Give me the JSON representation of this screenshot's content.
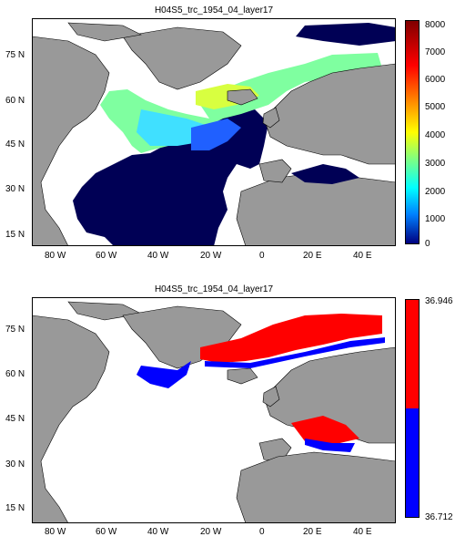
{
  "maps": [
    {
      "title": "H04S5_trc_1954_04_layer17",
      "lat_ticks": [
        "75 N",
        "60 N",
        "45 N",
        "30 N",
        "15 N"
      ],
      "lon_ticks": [
        "80 W",
        "60 W",
        "40 W",
        "20 W",
        "0",
        "20 E",
        "40 E"
      ],
      "colorbar": {
        "ticks": [
          "8000",
          "7000",
          "6000",
          "5000",
          "4000",
          "3000",
          "2000",
          "1000",
          "0"
        ],
        "range": [
          0,
          8000
        ],
        "colormap": "jet"
      }
    },
    {
      "title": "H04S5_trc_1954_04_layer17",
      "lat_ticks": [
        "75 N",
        "60 N",
        "45 N",
        "30 N",
        "15 N"
      ],
      "lon_ticks": [
        "80 W",
        "60 W",
        "40 W",
        "20 W",
        "0",
        "20 E",
        "40 E"
      ],
      "colorbar": {
        "ticks": [
          "36.946",
          "36.712"
        ],
        "range": [
          36.712,
          36.946
        ],
        "colors": [
          "#ff0000",
          "#0000ff"
        ]
      }
    }
  ],
  "colors": {
    "land": "#999999",
    "ocean_deep": "#000055",
    "red": "#ff0000",
    "blue": "#0000ff"
  }
}
